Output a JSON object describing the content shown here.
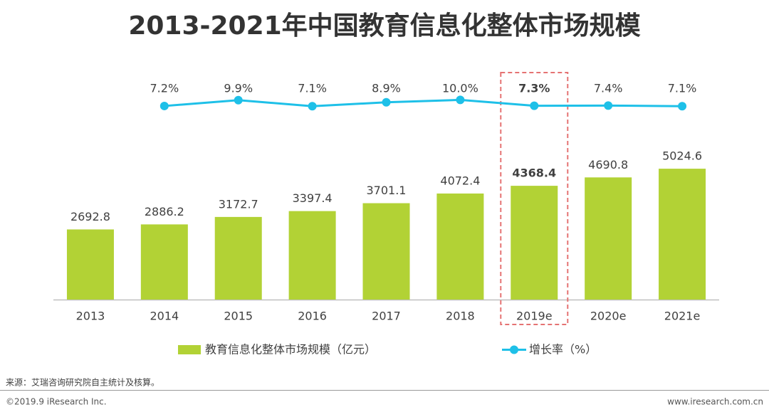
{
  "chart_data": {
    "type": "bar_line",
    "title": "2013-2021年中国教育信息化整体市场规模",
    "categories": [
      "2013",
      "2014",
      "2015",
      "2016",
      "2017",
      "2018",
      "2019e",
      "2020e",
      "2021e"
    ],
    "series": [
      {
        "name": "教育信息化整体市场规模（亿元）",
        "color": "#b2d235",
        "type": "bar",
        "values": [
          2692.8,
          2886.2,
          3172.7,
          3397.4,
          3701.1,
          4072.4,
          4368.4,
          4690.8,
          5024.6
        ]
      },
      {
        "name": "增长率（%）",
        "color": "#1ec0e8",
        "type": "line",
        "axis": "y2",
        "values": [
          null,
          7.2,
          9.9,
          7.1,
          8.9,
          10.0,
          7.3,
          7.4,
          7.1
        ],
        "value_labels": [
          null,
          "7.2%",
          "9.9%",
          "7.1%",
          "8.9%",
          "10.0%",
          "7.3%",
          "7.4%",
          "7.1%"
        ]
      }
    ],
    "ylim": [
      0,
      10000
    ],
    "y2lim": [
      -82,
      38
    ],
    "highlight_index": 6,
    "highlight_color": "#e57373",
    "source": "来源：艾瑞咨询研究院自主统计及核算。",
    "footer_left": "©2019.9 iResearch Inc.",
    "footer_right": "www.iresearch.com.cn"
  }
}
